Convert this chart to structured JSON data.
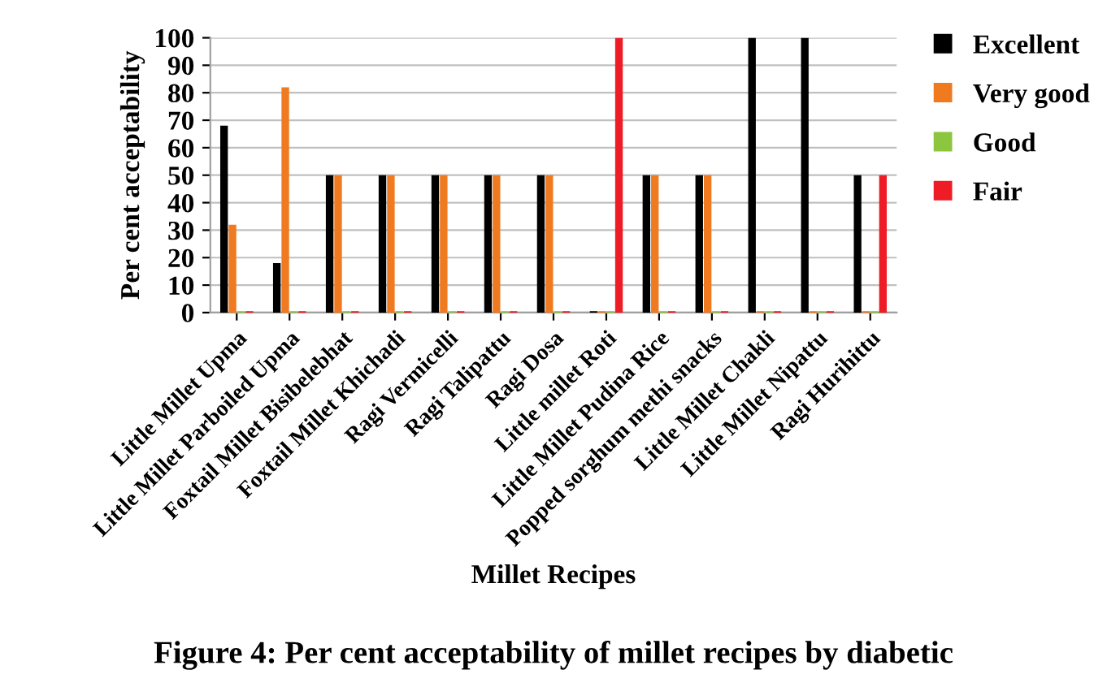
{
  "chart_data": {
    "type": "bar",
    "xlabel": "Millet Recipes",
    "ylabel": "Per cent acceptability",
    "categories": [
      "Little Millet Upma",
      "Little Millet Parboiled Upma",
      "Foxtail Millet Bisibelebhat",
      "Foxtail Millet Khichadi",
      "Ragi Vermicelli",
      "Ragi Talipattu",
      "Ragi Dosa",
      "Little millet Roti",
      "Little Millet Pudina Rice",
      "Popped sorghum methi snacks",
      "Little Millet Chakli",
      "Little Millet Nipattu",
      "Ragi Hurihittu"
    ],
    "series": [
      {
        "name": "Excellent",
        "color": "#000000",
        "values": [
          68,
          18,
          50,
          50,
          50,
          50,
          50,
          0,
          50,
          50,
          100,
          100,
          50
        ]
      },
      {
        "name": "Very good",
        "color": "#f07a20",
        "values": [
          32,
          82,
          50,
          50,
          50,
          50,
          50,
          0,
          50,
          50,
          0,
          0,
          0
        ]
      },
      {
        "name": "Good",
        "color": "#8cc63f",
        "values": [
          0,
          0,
          0,
          0,
          0,
          0,
          0,
          0,
          0,
          0,
          0,
          0,
          0
        ]
      },
      {
        "name": "Fair",
        "color": "#ee1c25",
        "values": [
          0,
          0,
          0,
          0,
          0,
          0,
          0,
          100,
          0,
          0,
          0,
          0,
          50
        ]
      }
    ],
    "ylim": [
      0,
      100
    ],
    "yticks": [
      0,
      10,
      20,
      30,
      40,
      50,
      60,
      70,
      80,
      90,
      100
    ],
    "grid": "y",
    "legend": "right",
    "annotations": [
      "Figure 4: Per cent acceptability of millet recipes by diabetic"
    ]
  }
}
